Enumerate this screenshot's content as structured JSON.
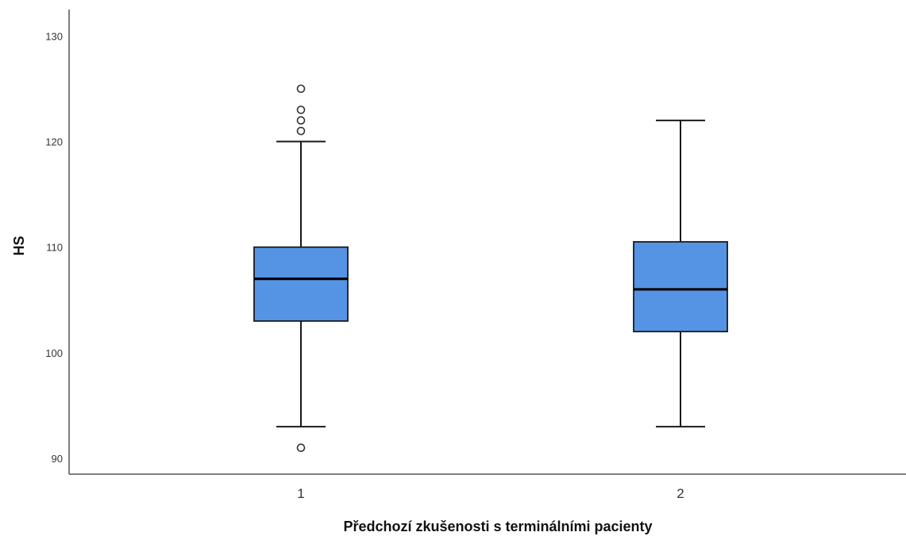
{
  "chart_data": {
    "type": "boxplot",
    "title": "",
    "xlabel": "Předchozí zkušenosti s terminálními pacienty",
    "ylabel": "HS",
    "categories": [
      "1",
      "2"
    ],
    "ylim": [
      88.5,
      132.5
    ],
    "yticks": [
      90,
      100,
      110,
      120,
      130
    ],
    "grid": false,
    "legend": "none",
    "box_color": "#5594e4",
    "series": [
      {
        "category": "1",
        "whisker_low": 93,
        "q1": 103,
        "median": 107,
        "q3": 110,
        "whisker_high": 120,
        "outliers": [
          91,
          121,
          122,
          123,
          125
        ]
      },
      {
        "category": "2",
        "whisker_low": 93,
        "q1": 102,
        "median": 106,
        "q3": 110.5,
        "whisker_high": 122,
        "outliers": []
      }
    ]
  }
}
